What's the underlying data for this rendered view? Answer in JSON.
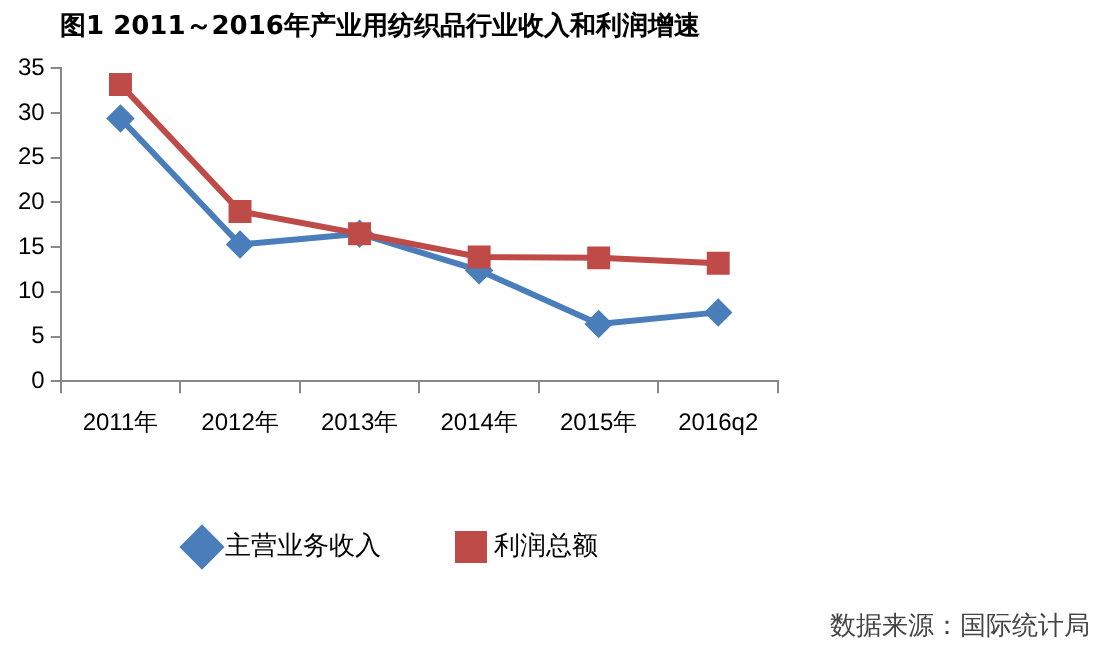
{
  "chart_data": {
    "type": "line",
    "title": "图1 2011～2016年产业用纺织品行业收入和利润增速",
    "categories": [
      "2011年",
      "2012年",
      "2013年",
      "2014年",
      "2015年",
      "2016q2"
    ],
    "series": [
      {
        "name": "主营业务收入",
        "color": "#4a7ebb",
        "marker": "diamond",
        "values": [
          29.4,
          15.3,
          16.5,
          12.4,
          6.4,
          7.7
        ]
      },
      {
        "name": "利润总额",
        "color": "#be4b48",
        "marker": "square",
        "values": [
          33.2,
          19.0,
          16.5,
          13.9,
          13.8,
          13.2
        ]
      }
    ],
    "ylim": [
      0,
      35
    ],
    "yticks": [
      0,
      5,
      10,
      15,
      20,
      25,
      30,
      35
    ],
    "grid": false,
    "legend": "bottom",
    "line_style": "solid",
    "annotations": [
      "数据来源：国际统计局"
    ]
  }
}
